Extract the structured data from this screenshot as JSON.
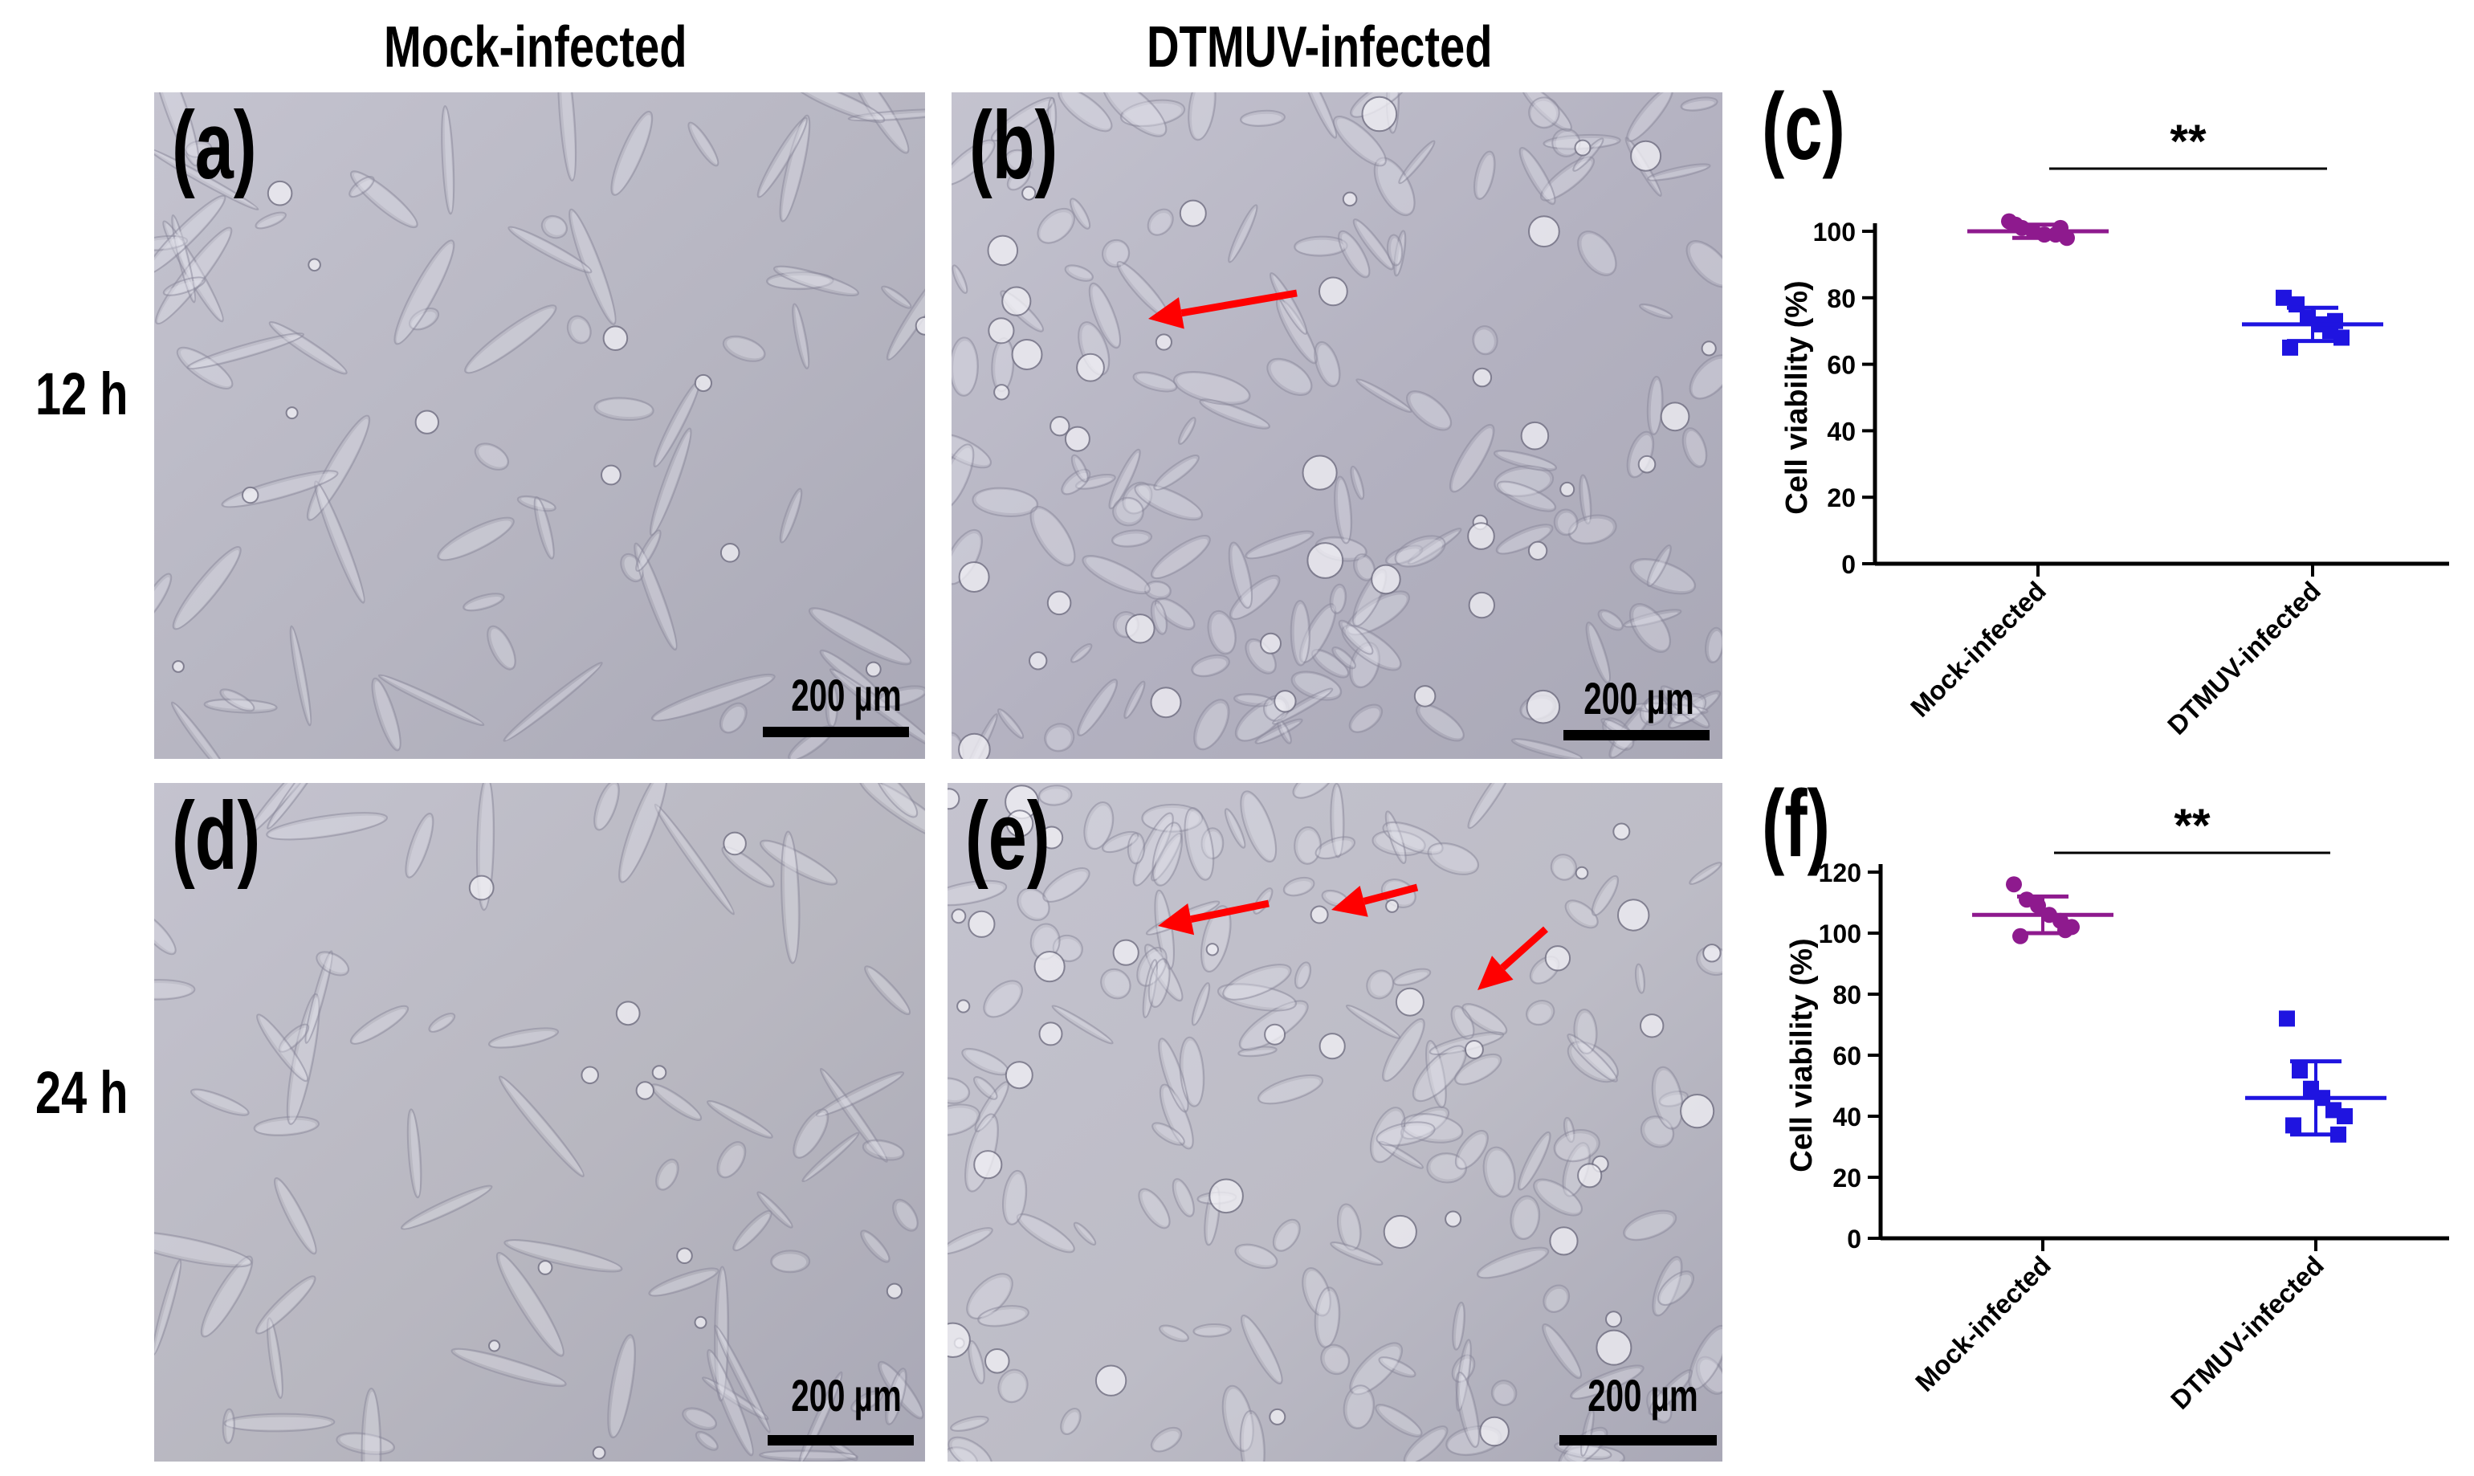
{
  "figure": {
    "column_headers": [
      "Mock-infected",
      "DTMUV-infected"
    ],
    "row_headers": [
      "12 h",
      "24 h"
    ],
    "panels": [
      {
        "letter": "(a)",
        "scale_bar": "200 µm",
        "tone": "#b6b5c1",
        "arrows": 0
      },
      {
        "letter": "(b)",
        "scale_bar": "200 µm",
        "tone": "#b3b1c0",
        "arrows": 1
      },
      {
        "letter": "(d)",
        "scale_bar": "200 µm",
        "tone": "#b8b7c0",
        "arrows": 0
      },
      {
        "letter": "(e)",
        "scale_bar": "200 µm",
        "tone": "#bdbcc6",
        "arrows": 3
      }
    ],
    "arrow_color": "#ff0000"
  },
  "chart_data": [
    {
      "panel": "(c)",
      "type": "scatter",
      "categories": [
        "Mock-infected",
        "DTMUV-infected"
      ],
      "ylabel": "Cell viability (%)",
      "ylim": [
        0,
        100
      ],
      "yticks": [
        0,
        20,
        40,
        60,
        80,
        100
      ],
      "significance": "**",
      "series": [
        {
          "color": "#8e1a8e",
          "marker": "circle",
          "mean": 100,
          "sd": 2,
          "values": [
            103,
            101,
            100,
            99,
            99,
            98,
            102,
            101
          ]
        },
        {
          "color": "#1f14e0",
          "marker": "square",
          "mean": 72,
          "sd": 5,
          "values": [
            80,
            78,
            74,
            72,
            70,
            68,
            65,
            73
          ]
        }
      ]
    },
    {
      "panel": "(f)",
      "type": "scatter",
      "categories": [
        "Mock-infected",
        "DTMUV-infected"
      ],
      "ylabel": "Cell viability (%)",
      "ylim": [
        0,
        120
      ],
      "yticks": [
        0,
        20,
        40,
        60,
        80,
        100,
        120
      ],
      "significance": "**",
      "series": [
        {
          "color": "#8e1a8e",
          "marker": "circle",
          "mean": 106,
          "sd": 6,
          "values": [
            116,
            111,
            109,
            106,
            104,
            102,
            99,
            101
          ]
        },
        {
          "color": "#1f14e0",
          "marker": "square",
          "mean": 46,
          "sd": 12,
          "values": [
            72,
            55,
            49,
            46,
            42,
            40,
            37,
            34
          ]
        }
      ]
    }
  ]
}
